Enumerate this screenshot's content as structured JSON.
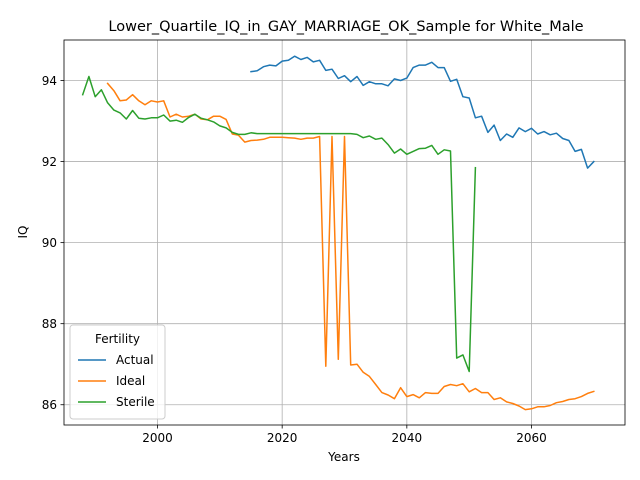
{
  "chart_data": {
    "type": "line",
    "title": "Lower_Quartile_IQ_in_GAY_MARRIAGE_OK_Sample for White_Male",
    "xlabel": "Years",
    "ylabel": "IQ",
    "xlim": [
      1985,
      2075
    ],
    "ylim": [
      85.5,
      95.0
    ],
    "xticks": [
      2000,
      2020,
      2040,
      2060
    ],
    "yticks": [
      86,
      88,
      90,
      92,
      94
    ],
    "grid": true,
    "legend": {
      "title": "Fertility",
      "position": "lower-left"
    },
    "series": [
      {
        "name": "Actual",
        "color": "#1f77b4",
        "x": [
          2015,
          2016,
          2017,
          2018,
          2019,
          2020,
          2021,
          2022,
          2023,
          2024,
          2025,
          2026,
          2027,
          2028,
          2029,
          2030,
          2031,
          2032,
          2033,
          2034,
          2035,
          2036,
          2037,
          2038,
          2039,
          2040,
          2041,
          2042,
          2043,
          2044,
          2045,
          2046,
          2047,
          2048,
          2049,
          2050,
          2051,
          2052,
          2053,
          2054,
          2055,
          2056,
          2057,
          2058,
          2059,
          2060,
          2061,
          2062,
          2063,
          2064,
          2065,
          2066,
          2067,
          2068,
          2069,
          2070
        ],
        "y": [
          94.22,
          94.24,
          94.34,
          94.38,
          94.36,
          94.48,
          94.5,
          94.6,
          94.52,
          94.57,
          94.46,
          94.5,
          94.25,
          94.28,
          94.05,
          94.12,
          93.97,
          94.1,
          93.88,
          93.97,
          93.92,
          93.92,
          93.87,
          94.04,
          94.0,
          94.06,
          94.32,
          94.38,
          94.38,
          94.45,
          94.32,
          94.32,
          93.98,
          94.03,
          93.6,
          93.57,
          93.08,
          93.12,
          92.72,
          92.9,
          92.52,
          92.68,
          92.6,
          92.83,
          92.74,
          92.82,
          92.68,
          92.74,
          92.66,
          92.7,
          92.57,
          92.52,
          92.25,
          92.3,
          91.84,
          92.0
        ]
      },
      {
        "name": "Ideal",
        "color": "#ff7f0e",
        "x": [
          1992,
          1993,
          1994,
          1995,
          1996,
          1997,
          1998,
          1999,
          2000,
          2001,
          2002,
          2003,
          2004,
          2005,
          2006,
          2007,
          2008,
          2009,
          2010,
          2011,
          2012,
          2013,
          2014,
          2015,
          2016,
          2017,
          2018,
          2019,
          2020,
          2021,
          2022,
          2023,
          2024,
          2025,
          2026,
          2027,
          2028,
          2029,
          2030,
          2031,
          2032,
          2033,
          2034,
          2035,
          2036,
          2037,
          2038,
          2039,
          2040,
          2041,
          2042,
          2043,
          2044,
          2045,
          2046,
          2047,
          2048,
          2049,
          2050,
          2051,
          2052,
          2053,
          2054,
          2055,
          2056,
          2057,
          2058,
          2059,
          2060,
          2061,
          2062,
          2063,
          2064,
          2065,
          2066,
          2067,
          2068,
          2069,
          2070
        ],
        "y": [
          93.93,
          93.75,
          93.5,
          93.52,
          93.65,
          93.5,
          93.4,
          93.5,
          93.47,
          93.5,
          93.1,
          93.17,
          93.1,
          93.12,
          93.17,
          93.05,
          93.03,
          93.12,
          93.12,
          93.04,
          92.68,
          92.65,
          92.48,
          92.52,
          92.53,
          92.55,
          92.6,
          92.6,
          92.6,
          92.59,
          92.58,
          92.55,
          92.58,
          92.58,
          92.62,
          86.95,
          92.62,
          87.12,
          92.62,
          86.98,
          87.0,
          86.8,
          86.7,
          86.5,
          86.3,
          86.24,
          86.15,
          86.42,
          86.2,
          86.25,
          86.17,
          86.3,
          86.28,
          86.28,
          86.45,
          86.5,
          86.47,
          86.52,
          86.32,
          86.4,
          86.3,
          86.3,
          86.13,
          86.17,
          86.07,
          86.03,
          85.97,
          85.88,
          85.9,
          85.95,
          85.95,
          85.98,
          86.05,
          86.08,
          86.13,
          86.15,
          86.2,
          86.28,
          86.33
        ]
      },
      {
        "name": "Sterile",
        "color": "#2ca02c",
        "x": [
          1988,
          1989,
          1990,
          1991,
          1992,
          1993,
          1994,
          1995,
          1996,
          1997,
          1998,
          1999,
          2000,
          2001,
          2002,
          2003,
          2004,
          2005,
          2006,
          2007,
          2008,
          2009,
          2010,
          2011,
          2012,
          2013,
          2014,
          2015,
          2016,
          2017,
          2018,
          2019,
          2020,
          2021,
          2022,
          2023,
          2024,
          2025,
          2026,
          2027,
          2028,
          2029,
          2030,
          2031,
          2032,
          2033,
          2034,
          2035,
          2036,
          2037,
          2038,
          2039,
          2040,
          2041,
          2042,
          2043,
          2044,
          2045,
          2046,
          2047,
          2048,
          2049,
          2050,
          2051
        ],
        "y": [
          93.65,
          94.1,
          93.6,
          93.77,
          93.45,
          93.27,
          93.2,
          93.05,
          93.26,
          93.07,
          93.05,
          93.08,
          93.08,
          93.15,
          93.0,
          93.02,
          92.97,
          93.09,
          93.17,
          93.07,
          93.03,
          92.98,
          92.88,
          92.83,
          92.72,
          92.67,
          92.67,
          92.71,
          92.69,
          92.69,
          92.69,
          92.69,
          92.69,
          92.69,
          92.69,
          92.69,
          92.69,
          92.69,
          92.69,
          92.69,
          92.69,
          92.69,
          92.69,
          92.69,
          92.67,
          92.59,
          92.63,
          92.55,
          92.58,
          92.42,
          92.21,
          92.31,
          92.18,
          92.25,
          92.32,
          92.33,
          92.4,
          92.18,
          92.29,
          92.26,
          87.15,
          87.23,
          86.82,
          91.85
        ]
      }
    ]
  }
}
